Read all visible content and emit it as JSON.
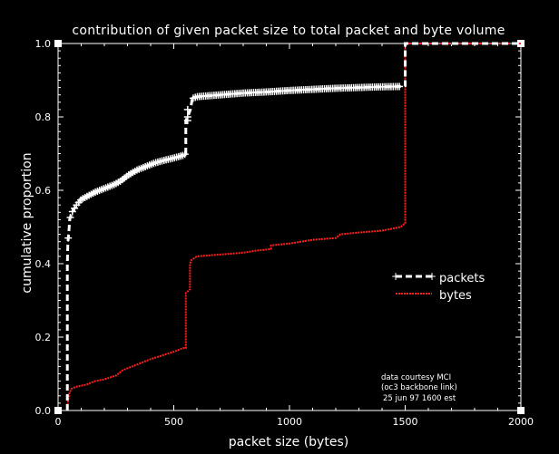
{
  "chart_data": {
    "type": "line",
    "title": "contribution of given packet size to total packet and byte volume",
    "xlabel": "packet size (bytes)",
    "ylabel": "cumulative proportion",
    "xlim": [
      0,
      2000
    ],
    "ylim": [
      0,
      1.0
    ],
    "x_ticks": [
      "0",
      "500",
      "1000",
      "1500",
      "2000"
    ],
    "y_ticks": [
      "0.0",
      "0.2",
      "0.4",
      "0.6",
      "0.8",
      "1.0"
    ],
    "grid": false,
    "legend_position": "right",
    "annotation": [
      "data courtesy MCI",
      "(oc3 backbone link)",
      "25 jun 97 1600 est"
    ],
    "series": [
      {
        "name": "packets",
        "color": "#ffffff",
        "style": "dashed-with-plus-markers",
        "x": [
          40,
          40,
          42,
          44,
          46,
          48,
          50,
          55,
          60,
          70,
          80,
          100,
          130,
          160,
          200,
          240,
          270,
          300,
          340,
          380,
          420,
          460,
          500,
          540,
          552,
          552,
          560,
          572,
          580,
          600,
          700,
          800,
          900,
          1000,
          1100,
          1200,
          1300,
          1400,
          1490,
          1500,
          1500,
          2000
        ],
        "y": [
          0.0,
          0.4,
          0.45,
          0.47,
          0.48,
          0.5,
          0.52,
          0.53,
          0.54,
          0.55,
          0.56,
          0.575,
          0.585,
          0.595,
          0.605,
          0.615,
          0.625,
          0.64,
          0.655,
          0.665,
          0.675,
          0.682,
          0.688,
          0.695,
          0.7,
          0.79,
          0.8,
          0.82,
          0.85,
          0.855,
          0.86,
          0.865,
          0.868,
          0.872,
          0.875,
          0.878,
          0.88,
          0.882,
          0.883,
          0.885,
          1.0,
          1.0
        ]
      },
      {
        "name": "bytes",
        "color": "#ff2020",
        "style": "dotted",
        "x": [
          40,
          40,
          44,
          50,
          60,
          80,
          120,
          160,
          200,
          250,
          280,
          320,
          360,
          400,
          450,
          500,
          540,
          552,
          552,
          570,
          570,
          576,
          600,
          700,
          800,
          850,
          920,
          920,
          1000,
          1100,
          1200,
          1220,
          1300,
          1400,
          1480,
          1500,
          1500,
          2000
        ],
        "y": [
          0.0,
          0.01,
          0.03,
          0.05,
          0.06,
          0.065,
          0.07,
          0.08,
          0.085,
          0.095,
          0.11,
          0.12,
          0.13,
          0.14,
          0.15,
          0.16,
          0.17,
          0.17,
          0.32,
          0.33,
          0.4,
          0.41,
          0.42,
          0.425,
          0.43,
          0.435,
          0.44,
          0.45,
          0.455,
          0.465,
          0.47,
          0.48,
          0.485,
          0.49,
          0.5,
          0.51,
          1.0,
          1.0
        ]
      }
    ]
  }
}
